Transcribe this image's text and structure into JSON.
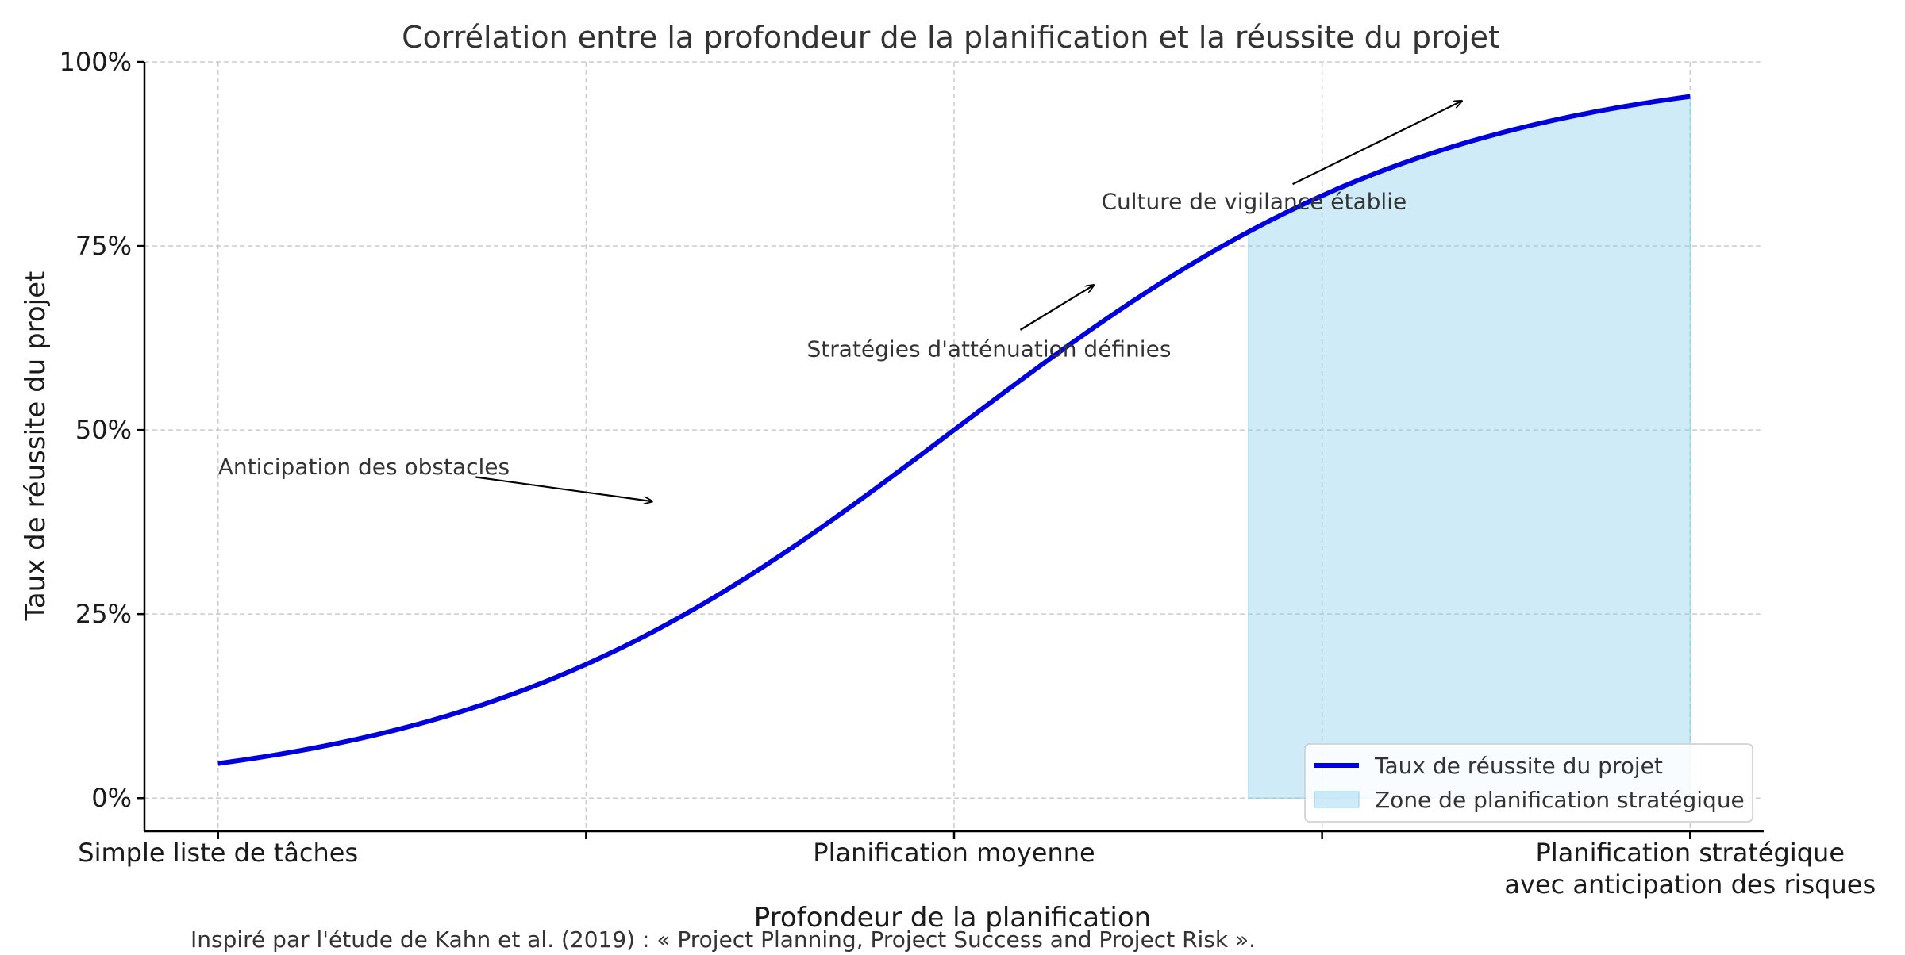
{
  "chart_data": {
    "type": "line",
    "title": "Corrélation entre la profondeur de la planification et la réussite du projet",
    "xlabel": "Profondeur de la planification",
    "ylabel": "Taux de réussite du projet",
    "xlim": [
      -0.1,
      2.1
    ],
    "ylim": [
      -0.045,
      1.0
    ],
    "x_ticks": [
      0,
      0.5,
      1,
      1.5,
      2
    ],
    "x_tick_labels": [
      {
        "x": 0,
        "lines": [
          "Simple liste de tâches"
        ]
      },
      {
        "x": 1,
        "lines": [
          "Planification moyenne"
        ]
      },
      {
        "x": 2,
        "lines": [
          "Planification stratégique",
          "avec anticipation des risques"
        ]
      }
    ],
    "y_ticks": [
      0,
      0.25,
      0.5,
      0.75,
      1.0
    ],
    "y_tick_labels": [
      "0%",
      "25%",
      "50%",
      "75%",
      "100%"
    ],
    "grid": true,
    "legend_position": "lower-right",
    "series": [
      {
        "name": "Taux de réussite du projet",
        "color": "#0000dd",
        "curve": "logistic",
        "x_start": 0,
        "x_end": 2,
        "sample_points": [
          {
            "x": 0,
            "y": 0.047
          },
          {
            "x": 0.25,
            "y": 0.095
          },
          {
            "x": 0.5,
            "y": 0.182
          },
          {
            "x": 0.75,
            "y": 0.32
          },
          {
            "x": 1.0,
            "y": 0.5
          },
          {
            "x": 1.25,
            "y": 0.68
          },
          {
            "x": 1.5,
            "y": 0.818
          },
          {
            "x": 1.75,
            "y": 0.905
          },
          {
            "x": 2.0,
            "y": 0.953
          }
        ]
      }
    ],
    "shaded_region": {
      "name": "Zone de planification stratégique",
      "color": "#87ceeb",
      "x_start": 1.4,
      "x_end": 2.0
    },
    "annotations": [
      {
        "text": "Anticipation des obstacles",
        "text_x": 0.0,
        "text_y": 0.44,
        "arrow_from": {
          "x": 0.35,
          "y": 0.436
        },
        "arrow_to": {
          "x": 0.59,
          "y": 0.403
        }
      },
      {
        "text": "Stratégies d'atténuation définies",
        "text_x": 0.8,
        "text_y": 0.6,
        "arrow_from": {
          "x": 1.09,
          "y": 0.636
        },
        "arrow_to": {
          "x": 1.19,
          "y": 0.697
        }
      },
      {
        "text": "Culture de vigilance établie",
        "text_x": 1.2,
        "text_y": 0.8,
        "arrow_from": {
          "x": 1.46,
          "y": 0.834
        },
        "arrow_to": {
          "x": 1.69,
          "y": 0.947
        }
      }
    ],
    "caption": "Inspiré par l'étude de Kahn et al. (2019) : « Project Planning, Project Success and Project Risk »."
  }
}
